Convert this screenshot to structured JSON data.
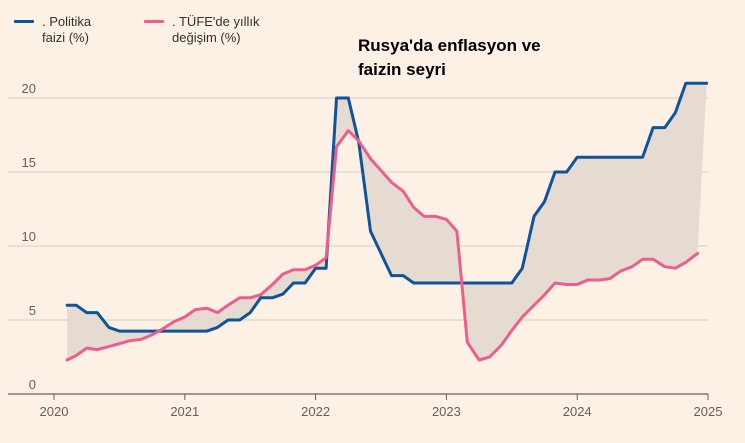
{
  "colors": {
    "policy": "#0f5499",
    "cpi": "#eb5e8d",
    "fill": "#e5d9d0",
    "grid": "#d9cdc3",
    "axis": "#66605c"
  },
  "chart_data": {
    "type": "line",
    "title": "Rusya'da enflasyon ve faizin seyri",
    "xlabel": "",
    "ylabel": "",
    "xlim": [
      2020,
      2025
    ],
    "ylim": [
      0,
      20
    ],
    "x_ticks": [
      "2020",
      "2021",
      "2022",
      "2023",
      "2024",
      "2025"
    ],
    "y_ticks": [
      "0",
      "5",
      "10",
      "15",
      "20"
    ],
    "grid": true,
    "legend_position": "top-left",
    "series": [
      {
        "name": "Politika faizi (%)",
        "points": [
          [
            2020.1,
            6.0
          ],
          [
            2020.17,
            6.0
          ],
          [
            2020.25,
            5.5
          ],
          [
            2020.33,
            5.5
          ],
          [
            2020.42,
            4.5
          ],
          [
            2020.5,
            4.25
          ],
          [
            2020.83,
            4.25
          ],
          [
            2021.17,
            4.25
          ],
          [
            2021.25,
            4.5
          ],
          [
            2021.33,
            5.0
          ],
          [
            2021.42,
            5.0
          ],
          [
            2021.5,
            5.5
          ],
          [
            2021.58,
            6.5
          ],
          [
            2021.67,
            6.5
          ],
          [
            2021.75,
            6.75
          ],
          [
            2021.83,
            7.5
          ],
          [
            2021.92,
            7.5
          ],
          [
            2022.0,
            8.5
          ],
          [
            2022.08,
            8.5
          ],
          [
            2022.16,
            20.0
          ],
          [
            2022.25,
            20.0
          ],
          [
            2022.33,
            17.0
          ],
          [
            2022.42,
            11.0
          ],
          [
            2022.5,
            9.5
          ],
          [
            2022.58,
            8.0
          ],
          [
            2022.67,
            8.0
          ],
          [
            2022.75,
            7.5
          ],
          [
            2023.42,
            7.5
          ],
          [
            2023.5,
            7.5
          ],
          [
            2023.58,
            8.5
          ],
          [
            2023.67,
            12.0
          ],
          [
            2023.75,
            13.0
          ],
          [
            2023.83,
            15.0
          ],
          [
            2023.92,
            15.0
          ],
          [
            2024.0,
            16.0
          ],
          [
            2024.5,
            16.0
          ],
          [
            2024.58,
            18.0
          ],
          [
            2024.67,
            18.0
          ],
          [
            2024.75,
            19.0
          ],
          [
            2024.83,
            21.0
          ],
          [
            2024.99,
            21.0
          ]
        ]
      },
      {
        "name": "TÜFE'de yıllık değişim (%)",
        "points": [
          [
            2020.1,
            2.3
          ],
          [
            2020.17,
            2.6
          ],
          [
            2020.25,
            3.1
          ],
          [
            2020.33,
            3.0
          ],
          [
            2020.42,
            3.2
          ],
          [
            2020.5,
            3.4
          ],
          [
            2020.58,
            3.6
          ],
          [
            2020.67,
            3.7
          ],
          [
            2020.75,
            4.0
          ],
          [
            2020.83,
            4.4
          ],
          [
            2020.92,
            4.9
          ],
          [
            2021.0,
            5.2
          ],
          [
            2021.08,
            5.7
          ],
          [
            2021.17,
            5.8
          ],
          [
            2021.25,
            5.5
          ],
          [
            2021.33,
            6.0
          ],
          [
            2021.42,
            6.5
          ],
          [
            2021.5,
            6.5
          ],
          [
            2021.58,
            6.7
          ],
          [
            2021.67,
            7.4
          ],
          [
            2021.75,
            8.1
          ],
          [
            2021.83,
            8.4
          ],
          [
            2021.92,
            8.4
          ],
          [
            2022.0,
            8.7
          ],
          [
            2022.08,
            9.2
          ],
          [
            2022.16,
            16.7
          ],
          [
            2022.25,
            17.8
          ],
          [
            2022.33,
            17.1
          ],
          [
            2022.42,
            15.9
          ],
          [
            2022.5,
            15.1
          ],
          [
            2022.58,
            14.3
          ],
          [
            2022.67,
            13.7
          ],
          [
            2022.75,
            12.6
          ],
          [
            2022.83,
            12.0
          ],
          [
            2022.92,
            12.0
          ],
          [
            2023.0,
            11.8
          ],
          [
            2023.08,
            11.0
          ],
          [
            2023.16,
            3.5
          ],
          [
            2023.25,
            2.3
          ],
          [
            2023.33,
            2.5
          ],
          [
            2023.42,
            3.3
          ],
          [
            2023.5,
            4.3
          ],
          [
            2023.58,
            5.2
          ],
          [
            2023.67,
            6.0
          ],
          [
            2023.75,
            6.7
          ],
          [
            2023.83,
            7.5
          ],
          [
            2023.92,
            7.4
          ],
          [
            2024.0,
            7.4
          ],
          [
            2024.08,
            7.7
          ],
          [
            2024.17,
            7.7
          ],
          [
            2024.25,
            7.8
          ],
          [
            2024.33,
            8.3
          ],
          [
            2024.42,
            8.6
          ],
          [
            2024.5,
            9.1
          ],
          [
            2024.58,
            9.1
          ],
          [
            2024.67,
            8.6
          ],
          [
            2024.75,
            8.5
          ],
          [
            2024.83,
            8.9
          ],
          [
            2024.92,
            9.5
          ]
        ]
      }
    ]
  },
  "legend": {
    "policy_label": ". Politika\nfaizi (%)",
    "cpi_label": ". TÜFE'de yıllık\ndeğişim (%)"
  }
}
